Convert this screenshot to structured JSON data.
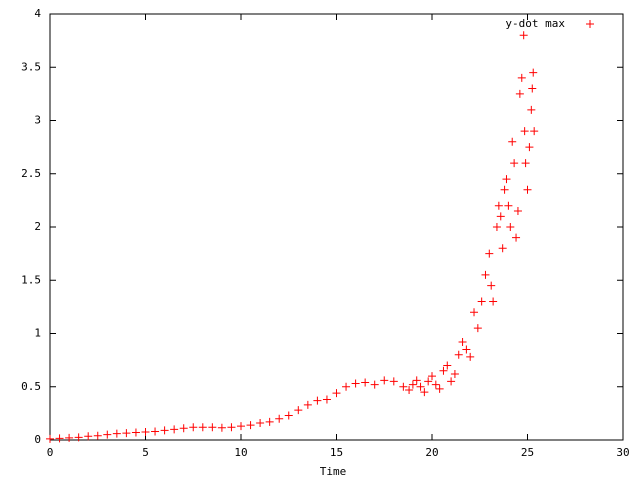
{
  "chart_data": {
    "type": "scatter",
    "xlabel": "Time",
    "xlim": [
      0,
      30
    ],
    "xticks": [
      0,
      5,
      10,
      15,
      20,
      25,
      30
    ],
    "ylim": [
      0,
      4
    ],
    "yticks": [
      0,
      0.5,
      1,
      1.5,
      2,
      2.5,
      3,
      3.5,
      4
    ],
    "legend": "upper-right",
    "series": [
      {
        "name": "y-dot max",
        "color": "#ff0000",
        "x": [
          0,
          0.5,
          1,
          1.5,
          2,
          2.5,
          3,
          3.5,
          4,
          4.5,
          5,
          5.5,
          6,
          6.5,
          7,
          7.5,
          8,
          8.5,
          9,
          9.5,
          10,
          10.5,
          11,
          11.5,
          12,
          12.5,
          13,
          13.5,
          14,
          14.5,
          15,
          15.5,
          16,
          16.5,
          17,
          17.5,
          18,
          18.5,
          18.8,
          19,
          19.2,
          19.4,
          19.6,
          19.8,
          20,
          20.2,
          20.4,
          20.6,
          20.8,
          21,
          21.2,
          21.4,
          21.6,
          21.8,
          22,
          22.2,
          22.4,
          22.6,
          22.8,
          23,
          23.1,
          23.2,
          23.4,
          23.5,
          23.6,
          23.7,
          23.8,
          23.9,
          24,
          24.1,
          24.2,
          24.3,
          24.4,
          24.5,
          24.6,
          24.7,
          24.8,
          24.85,
          24.9,
          25,
          25.1,
          25.2,
          25.3,
          25.35,
          25.25
        ],
        "values": [
          0.01,
          0.015,
          0.02,
          0.025,
          0.035,
          0.04,
          0.05,
          0.06,
          0.065,
          0.07,
          0.075,
          0.08,
          0.09,
          0.1,
          0.11,
          0.12,
          0.12,
          0.12,
          0.115,
          0.12,
          0.13,
          0.14,
          0.16,
          0.17,
          0.2,
          0.23,
          0.28,
          0.33,
          0.37,
          0.38,
          0.44,
          0.5,
          0.53,
          0.54,
          0.52,
          0.56,
          0.55,
          0.5,
          0.47,
          0.52,
          0.56,
          0.5,
          0.45,
          0.55,
          0.6,
          0.52,
          0.48,
          0.65,
          0.7,
          0.55,
          0.62,
          0.8,
          0.92,
          0.85,
          0.78,
          1.2,
          1.05,
          1.3,
          1.55,
          1.75,
          1.45,
          1.3,
          2.0,
          2.2,
          2.1,
          1.8,
          2.35,
          2.45,
          2.2,
          2.0,
          2.8,
          2.6,
          1.9,
          2.15,
          3.25,
          3.4,
          3.8,
          2.9,
          2.6,
          2.35,
          2.75,
          3.1,
          3.45,
          2.9,
          3.3
        ]
      }
    ]
  }
}
